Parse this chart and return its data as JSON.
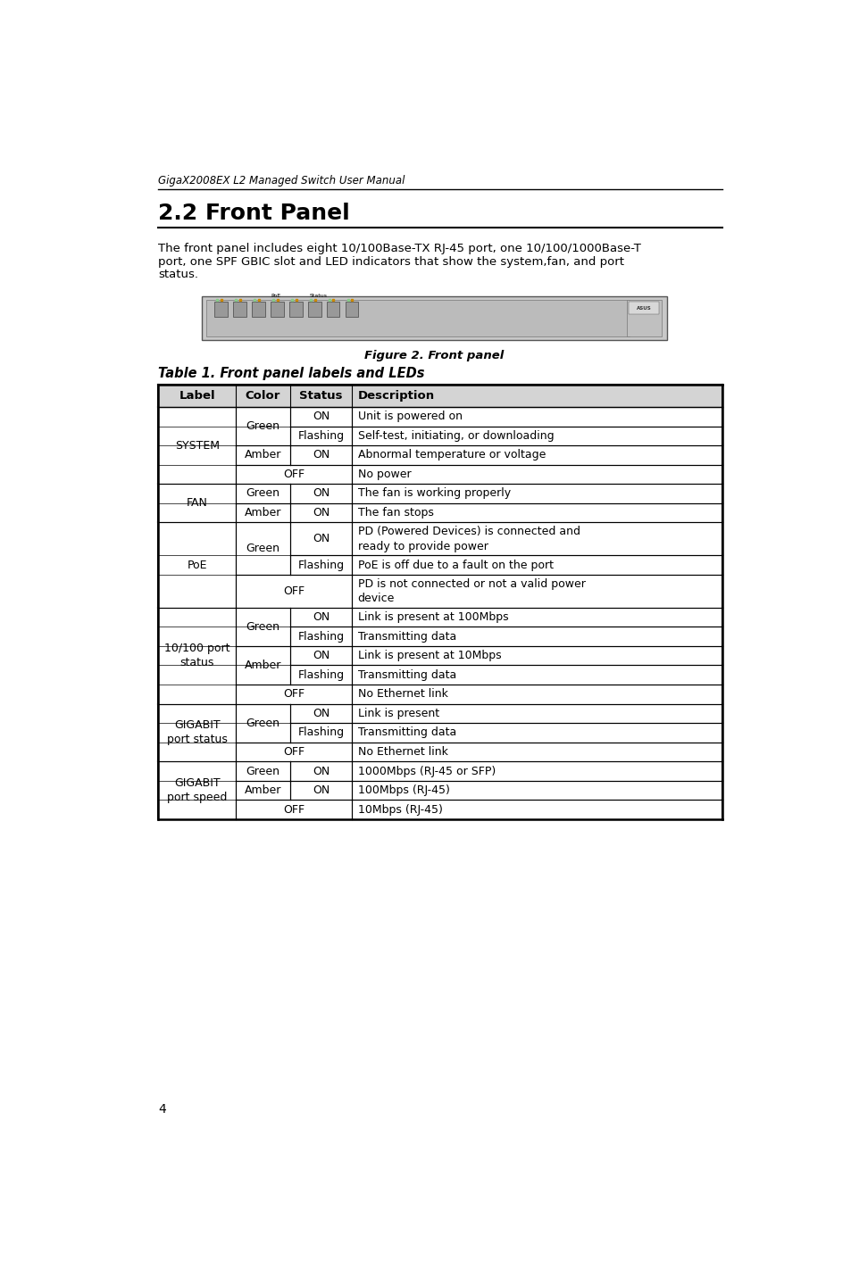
{
  "page_bg": "#ffffff",
  "header_text": "GigaX2008EX L2 Managed Switch User Manual",
  "section_num": "2.2",
  "section_name": "Front Panel",
  "body_lines": [
    "The front panel includes eight 10/100Base-TX RJ-45 port, one 10/100/1000Base-T",
    "port, one SPF GBIC slot and LED indicators that show the system,fan, and port",
    "status."
  ],
  "figure_caption": "Figure 2. Front panel",
  "table_title": "Table 1. Front panel labels and LEDs",
  "table_header": [
    "Label",
    "Color",
    "Status",
    "Description"
  ],
  "table_header_bg": "#d4d4d4",
  "page_number": "4",
  "text_color": "#000000",
  "rows": [
    {
      "label": "SYSTEM",
      "color": "Green",
      "status": "ON",
      "desc": "Unit is powered on",
      "label_span": 4,
      "color_span": 2,
      "status_single": true
    },
    {
      "label": "",
      "color": "",
      "status": "Flashing",
      "desc": "Self-test, initiating, or downloading",
      "label_span": 0,
      "color_span": 0,
      "status_single": true
    },
    {
      "label": "",
      "color": "Amber",
      "status": "ON",
      "desc": "Abnormal temperature or voltage",
      "label_span": 0,
      "color_span": 1,
      "status_single": true
    },
    {
      "label": "",
      "color": "OFF",
      "status": "",
      "desc": "No power",
      "label_span": 0,
      "color_span": 0,
      "off_row": true
    },
    {
      "label": "FAN",
      "color": "Green",
      "status": "ON",
      "desc": "The fan is working properly",
      "label_span": 2,
      "color_span": 1,
      "status_single": true
    },
    {
      "label": "",
      "color": "Amber",
      "status": "ON",
      "desc": "The fan stops",
      "label_span": 0,
      "color_span": 1,
      "status_single": true
    },
    {
      "label": "PoE",
      "color": "Green",
      "status": "ON",
      "desc": "PD (Powered Devices) is connected and\nready to provide power",
      "label_span": 3,
      "color_span": 2,
      "status_single": true,
      "double_desc": true
    },
    {
      "label": "",
      "color": "",
      "status": "Flashing",
      "desc": "PoE is off due to a fault on the port",
      "label_span": 0,
      "color_span": 0,
      "status_single": true
    },
    {
      "label": "",
      "color": "OFF",
      "status": "",
      "desc": "PD is not connected or not a valid power\ndevice",
      "label_span": 0,
      "color_span": 0,
      "off_row": true,
      "double_desc": true
    },
    {
      "label": "10/100 port\nstatus",
      "color": "Green",
      "status": "ON",
      "desc": "Link is present at 100Mbps",
      "label_span": 5,
      "color_span": 2,
      "status_single": true
    },
    {
      "label": "",
      "color": "",
      "status": "Flashing",
      "desc": "Transmitting data",
      "label_span": 0,
      "color_span": 0,
      "status_single": true
    },
    {
      "label": "",
      "color": "Amber",
      "status": "ON",
      "desc": "Link is present at 10Mbps",
      "label_span": 0,
      "color_span": 2,
      "status_single": true
    },
    {
      "label": "",
      "color": "",
      "status": "Flashing",
      "desc": "Transmitting data",
      "label_span": 0,
      "color_span": 0,
      "status_single": true
    },
    {
      "label": "",
      "color": "OFF",
      "status": "",
      "desc": "No Ethernet link",
      "label_span": 0,
      "color_span": 0,
      "off_row": true
    },
    {
      "label": "GIGABIT\nport status",
      "color": "Green",
      "status": "ON",
      "desc": "Link is present",
      "label_span": 3,
      "color_span": 2,
      "status_single": true
    },
    {
      "label": "",
      "color": "",
      "status": "Flashing",
      "desc": "Transmitting data",
      "label_span": 0,
      "color_span": 0,
      "status_single": true
    },
    {
      "label": "",
      "color": "OFF",
      "status": "",
      "desc": "No Ethernet link",
      "label_span": 0,
      "color_span": 0,
      "off_row": true
    },
    {
      "label": "GIGABIT\nport speed",
      "color": "Green",
      "status": "ON",
      "desc": "1000Mbps (RJ-45 or SFP)",
      "label_span": 3,
      "color_span": 1,
      "status_single": true
    },
    {
      "label": "",
      "color": "Amber",
      "status": "ON",
      "desc": "100Mbps (RJ-45)",
      "label_span": 0,
      "color_span": 1,
      "status_single": true
    },
    {
      "label": "",
      "color": "OFF",
      "status": "",
      "desc": "10Mbps (RJ-45)",
      "label_span": 0,
      "color_span": 0,
      "off_row": true
    }
  ]
}
